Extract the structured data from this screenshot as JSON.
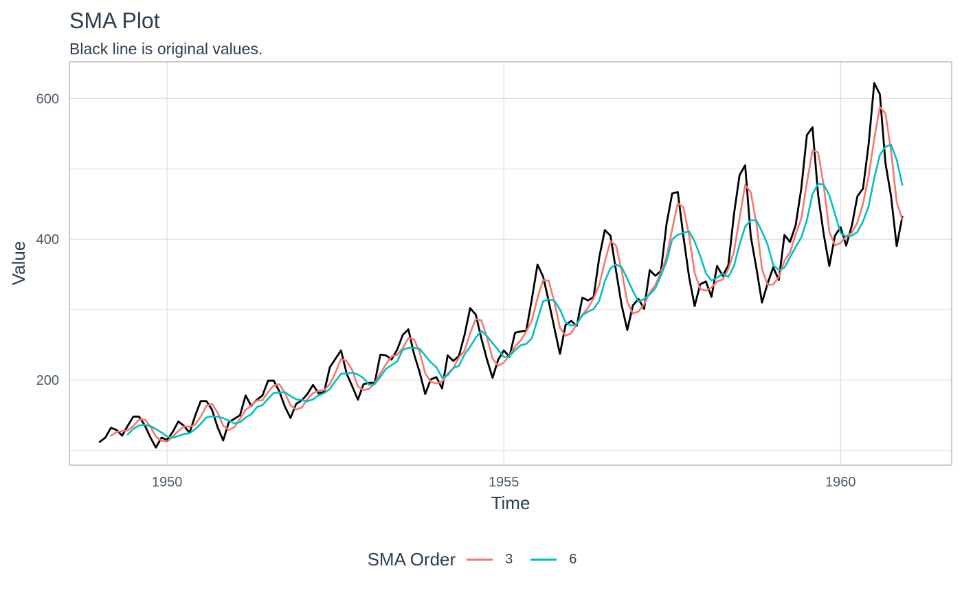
{
  "title": "SMA Plot",
  "subtitle": "Black line is original values.",
  "legend": {
    "title": "SMA Order",
    "items": [
      {
        "label": "3",
        "color": "#f8766d"
      },
      {
        "label": "6",
        "color": "#00bfc4"
      }
    ]
  },
  "chart_data": {
    "type": "line",
    "title": "SMA Plot",
    "subtitle": "Black line is original values.",
    "xlabel": "Time",
    "ylabel": "Value",
    "xlim": [
      1948.55,
      1961.65
    ],
    "ylim": [
      79,
      652
    ],
    "x_ticks": [
      1950,
      1955,
      1960
    ],
    "x_tick_labels": [
      "1950",
      "1955",
      "1960"
    ],
    "y_ticks": [
      200,
      400,
      600
    ],
    "y_tick_labels": [
      "200",
      "400",
      "600"
    ],
    "y_minor_grid": [
      100,
      300,
      500
    ],
    "x_minor_grid": [],
    "grid": true,
    "legend_position": "bottom",
    "x_start": 1949.0,
    "x_step": 0.0833333,
    "series": [
      {
        "color": "#000000",
        "values": [
          112,
          118,
          132,
          129,
          121,
          135,
          148,
          148,
          136,
          119,
          104,
          118,
          115,
          126,
          141,
          135,
          125,
          149,
          170,
          170,
          158,
          133,
          114,
          140,
          145,
          150,
          178,
          163,
          172,
          178,
          199,
          199,
          184,
          162,
          146,
          166,
          171,
          180,
          193,
          181,
          183,
          218,
          230,
          242,
          209,
          191,
          172,
          194,
          196,
          196,
          236,
          235,
          229,
          243,
          264,
          272,
          237,
          211,
          180,
          201,
          204,
          188,
          235,
          227,
          234,
          264,
          302,
          293,
          259,
          229,
          203,
          229,
          242,
          233,
          267,
          269,
          270,
          315,
          364,
          347,
          312,
          274,
          237,
          278,
          284,
          277,
          317,
          313,
          318,
          374,
          413,
          405,
          355,
          306,
          271,
          306,
          315,
          301,
          356,
          348,
          355,
          422,
          465,
          467,
          404,
          347,
          305,
          336,
          340,
          318,
          362,
          348,
          363,
          435,
          491,
          505,
          404,
          359,
          310,
          337,
          360,
          342,
          406,
          396,
          420,
          472,
          548,
          559,
          463,
          407,
          362,
          405,
          417,
          391,
          419,
          461,
          472,
          535,
          622,
          606,
          508,
          461,
          390,
          432
        ]
      },
      {
        "name": "3",
        "color": "#f8766d",
        "values": [
          null,
          null,
          120.7,
          126.3,
          127.3,
          128.3,
          134.7,
          143.7,
          144.0,
          134.3,
          119.7,
          113.7,
          112.3,
          119.7,
          127.3,
          134.0,
          133.7,
          136.3,
          148.0,
          163.0,
          166.0,
          153.7,
          135.0,
          129.0,
          133.0,
          145.0,
          157.7,
          163.7,
          171.0,
          171.0,
          183.0,
          192.0,
          194.0,
          181.7,
          164.0,
          158.0,
          161.0,
          172.3,
          181.3,
          184.7,
          185.7,
          194.0,
          210.3,
          230.0,
          227.0,
          214.0,
          190.7,
          185.7,
          187.3,
          195.3,
          209.3,
          222.3,
          233.3,
          235.7,
          245.3,
          259.7,
          257.7,
          240.0,
          209.3,
          197.3,
          195.0,
          197.7,
          209.0,
          216.7,
          232.0,
          241.7,
          266.7,
          286.3,
          284.7,
          260.3,
          230.3,
          220.3,
          224.7,
          234.7,
          247.3,
          256.3,
          268.7,
          284.7,
          316.3,
          342.0,
          341.0,
          311.0,
          274.3,
          263.0,
          266.3,
          279.7,
          292.7,
          302.3,
          316.0,
          335.0,
          368.3,
          397.3,
          391.0,
          355.3,
          310.7,
          294.3,
          297.3,
          307.3,
          324.0,
          335.0,
          353.0,
          375.0,
          414.0,
          451.3,
          445.3,
          406.0,
          352.0,
          329.3,
          327.0,
          331.3,
          340.0,
          342.7,
          357.7,
          382.0,
          429.7,
          477.0,
          466.7,
          422.7,
          357.7,
          335.3,
          335.7,
          346.3,
          369.3,
          381.3,
          407.3,
          429.3,
          480.0,
          526.3,
          523.3,
          476.3,
          410.7,
          391.3,
          394.7,
          404.3,
          409.0,
          423.7,
          450.7,
          489.3,
          543.0,
          587.7,
          578.7,
          525.0,
          453.0,
          427.7
        ]
      },
      {
        "name": "6",
        "color": "#00bfc4",
        "values": [
          null,
          null,
          null,
          null,
          null,
          122.8,
          130.5,
          135.5,
          136.2,
          134.5,
          130.3,
          125.5,
          119.8,
          118.0,
          120.5,
          123.2,
          124.2,
          130.2,
          137.7,
          146.7,
          148.3,
          147.8,
          145.7,
          142.3,
          138.3,
          140.0,
          146.7,
          151.3,
          161.3,
          164.3,
          173.3,
          181.5,
          182.3,
          182.7,
          177.2,
          172.5,
          171.5,
          169.8,
          172.3,
          178.2,
          181.3,
          187.3,
          198.3,
          208.8,
          209.2,
          210.5,
          207.8,
          202.7,
          193.2,
          194.0,
          204.7,
          215.7,
          221.2,
          226.2,
          243.0,
          245.7,
          245.8,
          244.3,
          234.7,
          224.8,
          218.2,
          203.3,
          206.7,
          217.0,
          220.0,
          236.3,
          247.2,
          260.2,
          269.7,
          262.3,
          252.2,
          242.7,
          232.5,
          233.7,
          242.3,
          249.3,
          251.2,
          259.5,
          286.0,
          311.8,
          314.5,
          312.8,
          300.2,
          282.0,
          277.0,
          279.3,
          292.2,
          297.0,
          300.7,
          312.5,
          340.3,
          358.7,
          364.3,
          360.2,
          344.0,
          326.3,
          311.3,
          315.0,
          321.7,
          330.5,
          348.5,
          368.7,
          399.7,
          406.2,
          409.2,
          411.2,
          396.7,
          376.3,
          351.7,
          341.3,
          345.0,
          351.7,
          346.3,
          361.8,
          392.5,
          418.0,
          426.7,
          427.0,
          410.8,
          392.3,
          363.0,
          356.2,
          359.7,
          374.5,
          389.2,
          402.3,
          427.3,
          464.0,
          478.8,
          477.7,
          462.5,
          436.0,
          408.8,
          403.8,
          405.0,
          410.3,
          425.2,
          446.8,
          486.7,
          519.8,
          531.3,
          534.3,
          512.8,
          477.2
        ]
      }
    ]
  }
}
